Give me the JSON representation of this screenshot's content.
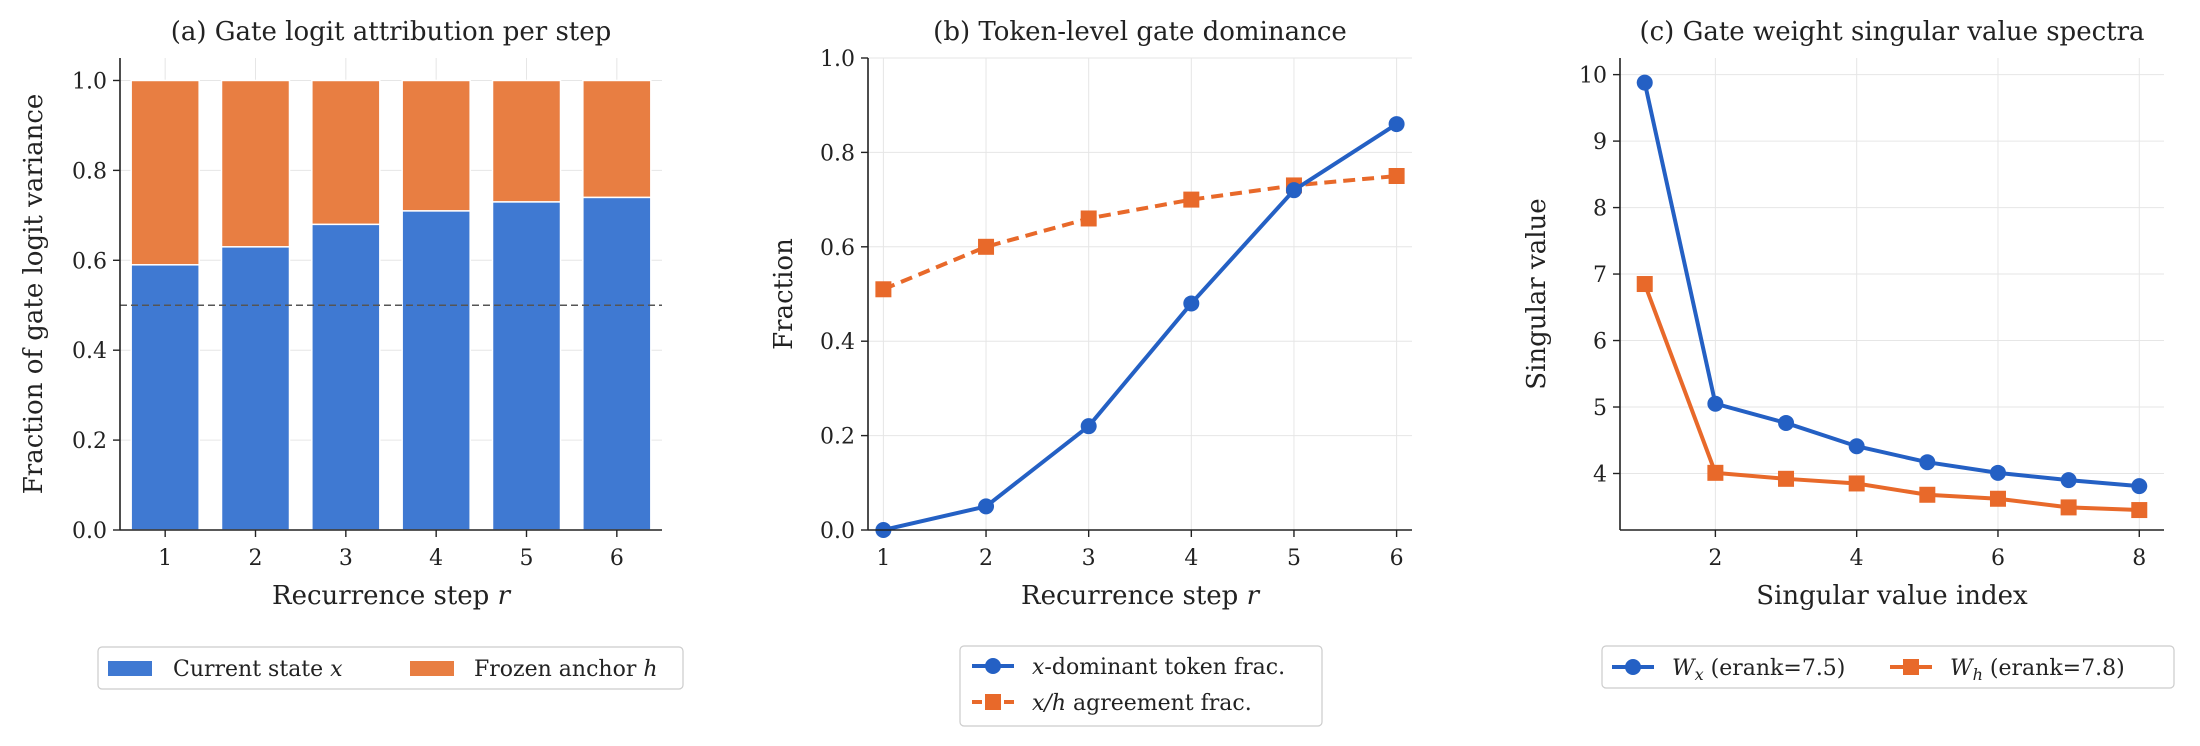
{
  "colors": {
    "blue": "#3F79D2",
    "orange": "#E87E42",
    "line_blue": "#2460C4",
    "line_orange": "#E8692A"
  },
  "chart_data": [
    {
      "type": "bar",
      "title": "(a) Gate logit attribution per step",
      "xlabel": "Recurrence step r",
      "ylabel": "Fraction of gate logit variance",
      "categories": [
        "1",
        "2",
        "3",
        "4",
        "5",
        "6"
      ],
      "series": [
        {
          "name": "Current state x",
          "values": [
            0.59,
            0.63,
            0.68,
            0.71,
            0.73,
            0.74
          ]
        },
        {
          "name": "Frozen anchor h",
          "values": [
            0.41,
            0.37,
            0.32,
            0.29,
            0.27,
            0.26
          ]
        }
      ],
      "stacked": true,
      "reference_line": 0.5,
      "ylim": [
        0,
        1.05
      ],
      "yticks": [
        "0.0",
        "0.2",
        "0.4",
        "0.6",
        "0.8",
        "1.0"
      ],
      "legend": "bottom"
    },
    {
      "type": "line",
      "title": "(b) Token-level gate dominance",
      "xlabel": "Recurrence step r",
      "ylabel": "Fraction",
      "x": [
        1,
        2,
        3,
        4,
        5,
        6
      ],
      "series": [
        {
          "name": "x-dominant token frac.",
          "values": [
            0.0,
            0.05,
            0.22,
            0.48,
            0.72,
            0.86
          ]
        },
        {
          "name": "x/h agreement frac.",
          "values": [
            0.51,
            0.6,
            0.66,
            0.7,
            0.73,
            0.75
          ]
        }
      ],
      "xlim": [
        0.85,
        6.15
      ],
      "ylim": [
        0,
        1.0
      ],
      "xticks": [
        "1",
        "2",
        "3",
        "4",
        "5",
        "6"
      ],
      "yticks": [
        "0.0",
        "0.2",
        "0.4",
        "0.6",
        "0.8",
        "1.0"
      ],
      "legend": "bottom"
    },
    {
      "type": "line",
      "title": "(c) Gate weight singular value spectra",
      "xlabel": "Singular value index",
      "ylabel": "Singular value",
      "x": [
        1,
        2,
        3,
        4,
        5,
        6,
        7,
        8
      ],
      "series": [
        {
          "name": "Wx (erank=7.5)",
          "values": [
            9.88,
            5.05,
            4.76,
            4.41,
            4.17,
            4.01,
            3.9,
            3.81
          ]
        },
        {
          "name": "Wh (erank=7.8)",
          "values": [
            6.85,
            4.01,
            3.92,
            3.85,
            3.68,
            3.62,
            3.49,
            3.45
          ]
        }
      ],
      "xlim": [
        0.65,
        8.35
      ],
      "ylim": [
        3.15,
        10.25
      ],
      "xticks": [
        "2",
        "4",
        "6",
        "8"
      ],
      "yticks": [
        "4",
        "5",
        "6",
        "7",
        "8",
        "9",
        "10"
      ],
      "legend": "bottom"
    }
  ]
}
